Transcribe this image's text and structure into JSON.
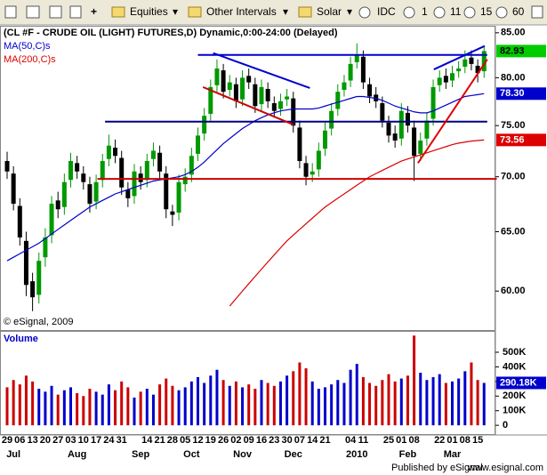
{
  "toolbar": {
    "menus": [
      "Equities",
      "Other Intervals",
      "Solar"
    ],
    "intervals": [
      "IDC",
      "1",
      "11",
      "15",
      "60"
    ]
  },
  "footer": [
    "Published by eSignal",
    "www.esignal.com"
  ],
  "chart_data": {
    "type": "candlestick",
    "title": "(CL #F - CRUDE OIL (LIGHT) FUTURES,D) Dynamic,0:00-24:00 (Delayed)",
    "watermark": "© eSignal, 2009",
    "log_scale": true,
    "up_color": "#009900",
    "down_color": "#000000",
    "ylim": [
      57.0,
      85.7
    ],
    "yticks": [
      {
        "value": 60,
        "label": "60.00"
      },
      {
        "value": 65,
        "label": "65.00"
      },
      {
        "value": 70,
        "label": "70.00"
      },
      {
        "value": 75,
        "label": "75.00"
      },
      {
        "value": 80,
        "label": "80.00"
      },
      {
        "value": 85,
        "label": "85.00"
      }
    ],
    "last_price_color": "#00cc00",
    "categories": [
      "29",
      null,
      "06",
      null,
      "13",
      null,
      "20",
      null,
      "27",
      null,
      "03",
      null,
      "10",
      null,
      "17",
      null,
      "24",
      null,
      "31",
      null,
      null,
      null,
      "14",
      null,
      "21",
      null,
      "28",
      null,
      "05",
      null,
      "12",
      null,
      "19",
      null,
      "26",
      null,
      "02",
      null,
      "09",
      null,
      "16",
      null,
      "23",
      null,
      "30",
      null,
      "07",
      null,
      "14",
      null,
      "21",
      null,
      null,
      null,
      "04",
      null,
      "11",
      null,
      null,
      null,
      "25",
      null,
      "01",
      null,
      "08",
      null,
      null,
      null,
      "22",
      null,
      "01",
      null,
      "08",
      null,
      "15",
      null
    ],
    "months": [
      null,
      "Jul",
      null,
      null,
      null,
      null,
      null,
      null,
      null,
      null,
      null,
      "Aug",
      null,
      null,
      null,
      null,
      null,
      null,
      null,
      null,
      null,
      "Sep",
      null,
      null,
      null,
      null,
      null,
      null,
      null,
      "Oct",
      null,
      null,
      null,
      null,
      null,
      null,
      null,
      "Nov",
      null,
      null,
      null,
      null,
      null,
      null,
      null,
      "Dec",
      null,
      null,
      null,
      null,
      null,
      null,
      null,
      null,
      null,
      "2010",
      null,
      null,
      null,
      null,
      null,
      null,
      null,
      "Feb",
      null,
      null,
      null,
      null,
      null,
      null,
      "Mar",
      null,
      null,
      null,
      null,
      null
    ],
    "ohlc": [
      [
        71.5,
        72.4,
        69.8,
        70.5
      ],
      [
        70.3,
        71.0,
        66.9,
        67.5
      ],
      [
        67.3,
        68.0,
        63.8,
        64.5
      ],
      [
        64.2,
        65.0,
        59.6,
        60.5
      ],
      [
        60.8,
        61.5,
        58.4,
        59.5
      ],
      [
        59.7,
        63.2,
        59.0,
        62.5
      ],
      [
        62.8,
        65.3,
        62.0,
        64.5
      ],
      [
        64.7,
        68.2,
        64.0,
        67.5
      ],
      [
        67.8,
        68.6,
        66.2,
        67.0
      ],
      [
        67.2,
        70.3,
        66.5,
        69.5
      ],
      [
        69.7,
        72.3,
        69.0,
        71.5
      ],
      [
        71.3,
        72.0,
        69.8,
        70.5
      ],
      [
        70.3,
        71.0,
        68.8,
        69.5
      ],
      [
        69.3,
        70.0,
        66.7,
        67.5
      ],
      [
        67.7,
        70.2,
        67.0,
        69.5
      ],
      [
        69.7,
        72.2,
        69.0,
        71.5
      ],
      [
        71.7,
        74.1,
        71.0,
        73.0
      ],
      [
        72.8,
        73.6,
        71.3,
        72.0
      ],
      [
        71.8,
        72.5,
        68.3,
        69.0
      ],
      [
        68.8,
        69.5,
        67.2,
        68.0
      ],
      [
        68.2,
        71.2,
        67.5,
        70.5
      ],
      [
        70.3,
        71.0,
        68.8,
        69.5
      ],
      [
        69.7,
        72.2,
        69.0,
        71.5
      ],
      [
        71.7,
        73.3,
        71.0,
        72.5
      ],
      [
        72.3,
        73.0,
        69.8,
        70.5
      ],
      [
        70.3,
        71.0,
        66.2,
        67.0
      ],
      [
        66.8,
        67.4,
        65.5,
        66.5
      ],
      [
        66.7,
        70.2,
        66.0,
        69.5
      ],
      [
        69.3,
        70.8,
        68.6,
        70.0
      ],
      [
        70.2,
        72.8,
        69.5,
        72.0
      ],
      [
        72.2,
        74.8,
        71.5,
        74.0
      ],
      [
        74.2,
        76.8,
        73.5,
        76.0
      ],
      [
        76.2,
        79.8,
        75.5,
        79.0
      ],
      [
        79.2,
        82.0,
        78.5,
        81.0
      ],
      [
        80.8,
        81.5,
        77.8,
        78.5
      ],
      [
        78.7,
        80.3,
        78.0,
        79.5
      ],
      [
        79.3,
        80.0,
        76.8,
        77.5
      ],
      [
        77.7,
        80.8,
        77.0,
        80.0
      ],
      [
        80.2,
        81.0,
        78.8,
        79.5
      ],
      [
        79.3,
        80.0,
        76.3,
        77.0
      ],
      [
        77.2,
        79.8,
        76.5,
        79.0
      ],
      [
        78.8,
        79.5,
        76.8,
        77.5
      ],
      [
        77.3,
        78.0,
        75.8,
        76.5
      ],
      [
        76.7,
        78.3,
        76.0,
        77.5
      ],
      [
        77.7,
        78.8,
        77.0,
        78.0
      ],
      [
        77.8,
        78.5,
        74.3,
        75.0
      ],
      [
        74.8,
        75.5,
        70.8,
        71.5
      ],
      [
        71.3,
        72.0,
        69.2,
        70.0
      ],
      [
        70.2,
        71.3,
        69.5,
        70.5
      ],
      [
        70.7,
        73.3,
        70.0,
        72.5
      ],
      [
        72.7,
        75.3,
        72.0,
        74.5
      ],
      [
        74.7,
        77.3,
        74.0,
        76.5
      ],
      [
        76.7,
        79.3,
        76.0,
        78.5
      ],
      [
        78.7,
        80.3,
        78.0,
        79.5
      ],
      [
        79.7,
        82.3,
        79.0,
        81.5
      ],
      [
        81.7,
        83.8,
        81.0,
        82.5
      ],
      [
        82.3,
        83.0,
        78.8,
        79.5
      ],
      [
        79.3,
        80.0,
        77.3,
        78.0
      ],
      [
        78.2,
        79.0,
        76.8,
        77.5
      ],
      [
        77.3,
        78.0,
        74.8,
        75.5
      ],
      [
        75.3,
        76.0,
        73.3,
        74.0
      ],
      [
        74.2,
        75.0,
        72.8,
        73.5
      ],
      [
        73.7,
        77.3,
        73.0,
        76.5
      ],
      [
        76.3,
        77.0,
        74.3,
        75.0
      ],
      [
        74.8,
        75.5,
        69.6,
        72.0
      ],
      [
        72.2,
        74.3,
        71.5,
        73.5
      ],
      [
        73.7,
        76.3,
        73.0,
        75.5
      ],
      [
        75.7,
        79.8,
        75.0,
        79.0
      ],
      [
        79.2,
        80.8,
        78.5,
        80.0
      ],
      [
        80.2,
        81.0,
        78.8,
        79.5
      ],
      [
        79.7,
        81.3,
        79.0,
        80.5
      ],
      [
        80.7,
        81.8,
        80.0,
        81.0
      ],
      [
        81.2,
        83.0,
        80.5,
        82.0
      ],
      [
        82.2,
        83.0,
        80.8,
        81.5
      ],
      [
        81.3,
        82.0,
        79.5,
        80.5
      ],
      [
        80.7,
        83.5,
        80.0,
        82.93
      ]
    ],
    "series": [
      {
        "name": "MA(50,C)s",
        "color": "#0000cc",
        "last": {
          "value": 78.3,
          "label": "78.30"
        },
        "values": [
          62.5,
          62.8,
          63.1,
          63.4,
          63.7,
          64.0,
          64.4,
          64.8,
          65.2,
          65.6,
          66.0,
          66.4,
          66.8,
          67.2,
          67.5,
          67.8,
          68.1,
          68.4,
          68.6,
          68.8,
          69.0,
          69.2,
          69.4,
          69.6,
          69.7,
          69.8,
          69.9,
          70.0,
          70.2,
          70.5,
          70.9,
          71.4,
          72.0,
          72.6,
          73.2,
          73.7,
          74.2,
          74.7,
          75.1,
          75.5,
          75.8,
          76.1,
          76.3,
          76.5,
          76.6,
          76.7,
          76.7,
          76.7,
          76.7,
          76.8,
          77.0,
          77.2,
          77.4,
          77.6,
          77.8,
          78.0,
          78.0,
          77.9,
          77.8,
          77.6,
          77.3,
          77.0,
          76.8,
          76.6,
          76.4,
          76.3,
          76.3,
          76.5,
          76.8,
          77.1,
          77.4,
          77.7,
          78.0,
          78.1,
          78.2,
          78.3
        ]
      },
      {
        "name": "MA(200,C)s",
        "color": "#dd0000",
        "last": {
          "value": 73.56,
          "label": "73.56"
        },
        "values": [
          null,
          null,
          null,
          null,
          null,
          null,
          null,
          null,
          null,
          null,
          null,
          null,
          null,
          null,
          null,
          null,
          null,
          null,
          null,
          null,
          null,
          null,
          null,
          null,
          null,
          null,
          null,
          null,
          null,
          null,
          null,
          null,
          null,
          null,
          null,
          58.8,
          59.4,
          60.0,
          60.6,
          61.2,
          61.8,
          62.4,
          63.0,
          63.6,
          64.2,
          64.7,
          65.2,
          65.7,
          66.2,
          66.7,
          67.2,
          67.6,
          68.0,
          68.4,
          68.8,
          69.2,
          69.6,
          70.0,
          70.3,
          70.6,
          70.9,
          71.2,
          71.5,
          71.7,
          71.9,
          72.1,
          72.3,
          72.5,
          72.7,
          72.9,
          73.1,
          73.25,
          73.35,
          73.45,
          73.5,
          73.56
        ]
      }
    ],
    "trendlines": [
      {
        "color": "#0000cc",
        "x": [
          30,
          75.5
        ],
        "y": [
          82.5,
          82.5
        ]
      },
      {
        "color": "#000080",
        "x": [
          15.4,
          75.5
        ],
        "y": [
          75.4,
          75.4
        ]
      },
      {
        "color": "#cc0000",
        "x": [
          14.2,
          77
        ],
        "y": [
          69.8,
          69.8
        ]
      },
      {
        "color": "#0000cc",
        "x": [
          32.4,
          47.6
        ],
        "y": [
          82.7,
          78.9
        ]
      },
      {
        "color": "#cc0000",
        "x": [
          30.8,
          45
        ],
        "y": [
          79.0,
          75.1
        ]
      },
      {
        "color": "#dd0000",
        "x": [
          64.6,
          75.5
        ],
        "y": [
          71.3,
          82.0
        ]
      },
      {
        "color": "#0000cc",
        "x": [
          67.1,
          75.1
        ],
        "y": [
          80.9,
          83.5
        ]
      }
    ],
    "volume": {
      "name": "Volume",
      "up_color": "#0000cc",
      "down_color": "#cc0000",
      "last_color": "#0000cc",
      "ylim": [
        -60000,
        640000
      ],
      "yticks": [
        0,
        {
          "value": 100000,
          "label": "100K"
        },
        {
          "value": 200000,
          "label": "200K"
        },
        {
          "value": 300000,
          "label": "300K"
        },
        {
          "value": 400000,
          "label": "400K"
        },
        {
          "value": 500000,
          "label": "500K"
        }
      ],
      "last": {
        "value": 290180,
        "label": "290.18K"
      },
      "values": [
        260000,
        310000,
        280000,
        340000,
        300000,
        250000,
        230000,
        270000,
        210000,
        240000,
        260000,
        220000,
        200000,
        250000,
        230000,
        210000,
        280000,
        240000,
        300000,
        260000,
        190000,
        230000,
        250000,
        210000,
        280000,
        320000,
        270000,
        240000,
        260000,
        300000,
        330000,
        290000,
        340000,
        380000,
        310000,
        270000,
        300000,
        260000,
        280000,
        250000,
        310000,
        290000,
        270000,
        300000,
        340000,
        370000,
        430000,
        390000,
        300000,
        250000,
        260000,
        280000,
        310000,
        290000,
        380000,
        420000,
        330000,
        290000,
        270000,
        310000,
        350000,
        300000,
        320000,
        340000,
        614000,
        360000,
        310000,
        330000,
        350000,
        290000,
        300000,
        320000,
        370000,
        430000,
        310000,
        290180
      ]
    }
  }
}
